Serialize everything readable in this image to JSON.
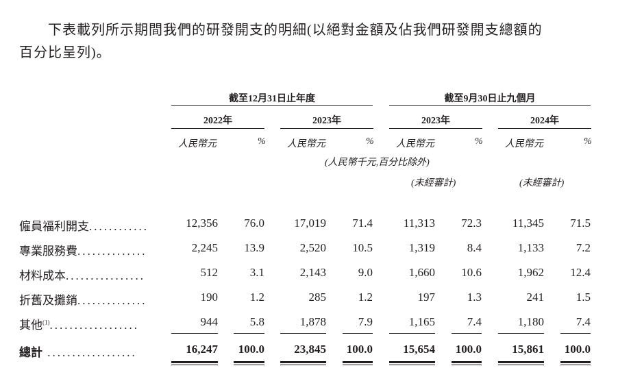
{
  "intro": {
    "line1": "下表載列所示期間我們的研發開支的明細(以絕對金額及佔我們研發開支總額的",
    "line2": "百分比呈列)。"
  },
  "headers": {
    "group1": "截至12月31日止年度",
    "group2": "截至9月30日止九個月",
    "years": [
      "2022年",
      "2023年",
      "2023年",
      "2024年"
    ],
    "amount_unit": "人民幣元",
    "pct_unit": "%",
    "note": "(人民幣千元,百分比除外)",
    "unaudited": "(未經審計)"
  },
  "rows": [
    {
      "label": "僱員福利開支",
      "dots": "............",
      "values": [
        "12,356",
        "76.0",
        "17,019",
        "71.4",
        "11,313",
        "72.3",
        "11,345",
        "71.5"
      ]
    },
    {
      "label": "專業服務費",
      "dots": "..............",
      "values": [
        "2,245",
        "13.9",
        "2,520",
        "10.5",
        "1,319",
        "8.4",
        "1,133",
        "7.2"
      ]
    },
    {
      "label": "材料成本",
      "dots": "................",
      "values": [
        "512",
        "3.1",
        "2,143",
        "9.0",
        "1,660",
        "10.6",
        "1,962",
        "12.4"
      ]
    },
    {
      "label": "折舊及攤銷",
      "dots": "..............",
      "values": [
        "190",
        "1.2",
        "285",
        "1.2",
        "197",
        "1.3",
        "241",
        "1.5"
      ]
    },
    {
      "label": "其他",
      "sup": "(1)",
      "dots": "..................",
      "values": [
        "944",
        "5.8",
        "1,878",
        "7.9",
        "1,165",
        "7.4",
        "1,180",
        "7.4"
      ]
    }
  ],
  "total": {
    "label": "總計",
    "dots": " ..................",
    "values": [
      "16,247",
      "100.0",
      "23,845",
      "100.0",
      "15,654",
      "100.0",
      "15,861",
      "100.0"
    ]
  }
}
